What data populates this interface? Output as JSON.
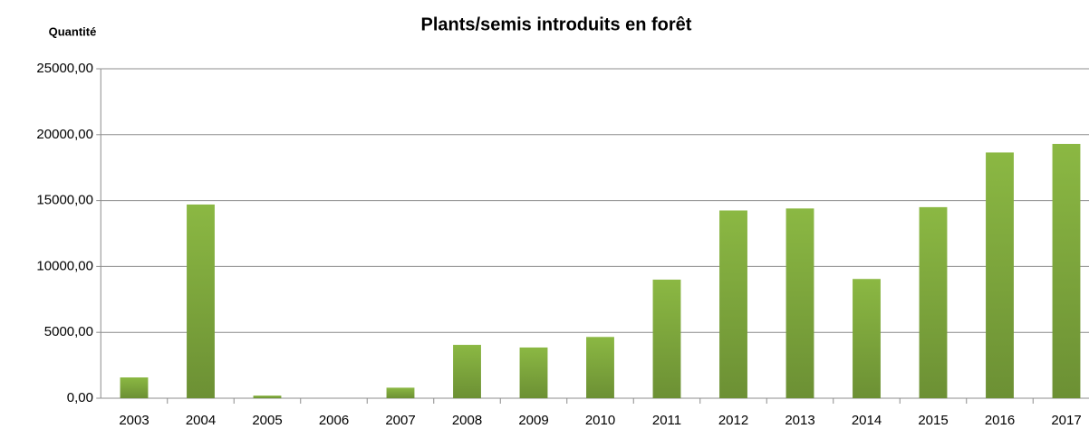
{
  "chart_data": {
    "type": "bar",
    "title": "Plants/semis introduits en forêt",
    "y_label": "Quantité",
    "categories": [
      "2003",
      "2004",
      "2005",
      "2006",
      "2007",
      "2008",
      "2009",
      "2010",
      "2011",
      "2012",
      "2013",
      "2014",
      "2015",
      "2016",
      "2017"
    ],
    "values": [
      1580,
      14700,
      200,
      0,
      800,
      4050,
      3850,
      4650,
      9000,
      14250,
      14400,
      9050,
      14500,
      18650,
      19300
    ],
    "color": "#8bb843",
    "ylim": [
      0,
      25000
    ],
    "yticks": [
      {
        "value": 0,
        "label": "0,00"
      },
      {
        "value": 5000,
        "label": "5000,00"
      },
      {
        "value": 10000,
        "label": "10000,00"
      },
      {
        "value": 15000,
        "label": "15000,00"
      },
      {
        "value": 20000,
        "label": "20000,00"
      },
      {
        "value": 25000,
        "label": "25000,00"
      }
    ],
    "grid": true
  }
}
